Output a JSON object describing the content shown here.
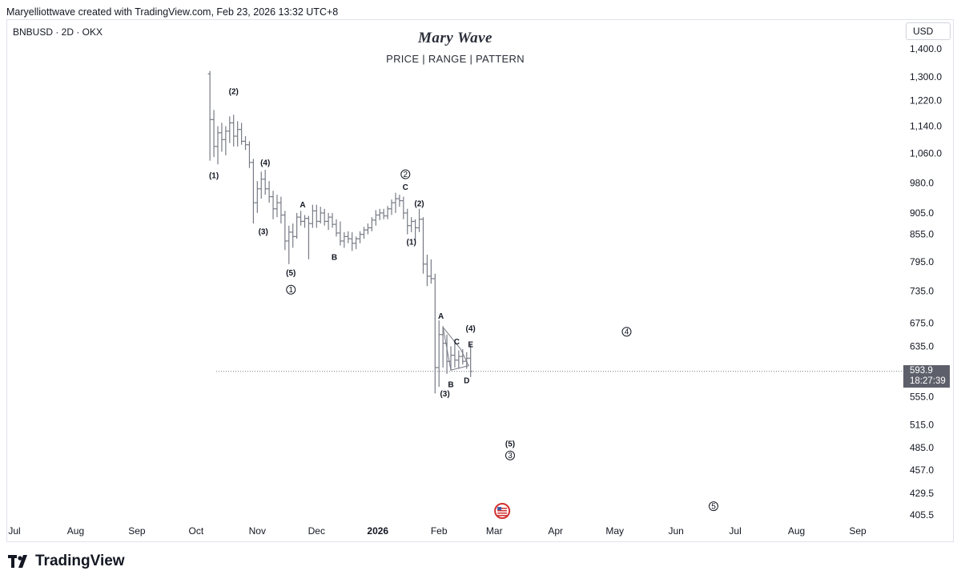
{
  "header": {
    "attribution": "Maryelliottwave created with TradingView.com, Feb 23, 2026 13:32 UTC+8"
  },
  "chart_info": {
    "symbol": "BNBUSD · 2D · OKX",
    "currency": "USD",
    "current_price": "593.9",
    "countdown": "18:27:39",
    "footer_brand": "TradingView"
  },
  "chart_data": {
    "type": "ohlc",
    "title": "Mary Wave",
    "subtitle": "PRICE  |  RANGE  |  PATTERN",
    "scale": "log",
    "y_range": [
      390,
      1480
    ],
    "x_range": [
      "2025-06-25",
      "2026-09-30"
    ],
    "y_ticks": [
      "1,400.0",
      "1,300.0",
      "1,220.0",
      "1,140.0",
      "1,060.0",
      "980.0",
      "905.0",
      "855.0",
      "795.0",
      "735.0",
      "675.0",
      "635.0",
      "555.0",
      "515.0",
      "485.0",
      "457.0",
      "429.5",
      "405.5"
    ],
    "x_ticks": [
      {
        "label": "Jul",
        "date": "2025-07-01",
        "bold": false
      },
      {
        "label": "Aug",
        "date": "2025-08-01",
        "bold": false
      },
      {
        "label": "Sep",
        "date": "2025-09-01",
        "bold": false
      },
      {
        "label": "Oct",
        "date": "2025-10-01",
        "bold": false
      },
      {
        "label": "Nov",
        "date": "2025-11-01",
        "bold": false
      },
      {
        "label": "Dec",
        "date": "2025-12-01",
        "bold": false
      },
      {
        "label": "2026",
        "date": "2026-01-01",
        "bold": true
      },
      {
        "label": "Feb",
        "date": "2026-02-01",
        "bold": false
      },
      {
        "label": "Mar",
        "date": "2026-03-01",
        "bold": false
      },
      {
        "label": "Apr",
        "date": "2026-04-01",
        "bold": false
      },
      {
        "label": "May",
        "date": "2026-05-01",
        "bold": false
      },
      {
        "label": "Jun",
        "date": "2026-06-01",
        "bold": false
      },
      {
        "label": "Jul",
        "date": "2026-07-01",
        "bold": false
      },
      {
        "label": "Aug",
        "date": "2026-08-01",
        "bold": false
      },
      {
        "label": "Sep",
        "date": "2026-09-01",
        "bold": false
      }
    ],
    "last_price": 593.9,
    "bars": [
      {
        "date": "2025-10-08",
        "o": 1310,
        "h": 1320,
        "l": 1040,
        "c": 1160
      },
      {
        "date": "2025-10-10",
        "o": 1160,
        "h": 1190,
        "l": 1050,
        "c": 1080
      },
      {
        "date": "2025-10-12",
        "o": 1080,
        "h": 1140,
        "l": 1030,
        "c": 1120
      },
      {
        "date": "2025-10-14",
        "o": 1120,
        "h": 1150,
        "l": 1065,
        "c": 1100
      },
      {
        "date": "2025-10-16",
        "o": 1100,
        "h": 1140,
        "l": 1055,
        "c": 1125
      },
      {
        "date": "2025-10-18",
        "o": 1125,
        "h": 1170,
        "l": 1090,
        "c": 1150
      },
      {
        "date": "2025-10-20",
        "o": 1150,
        "h": 1175,
        "l": 1080,
        "c": 1110
      },
      {
        "date": "2025-10-22",
        "o": 1110,
        "h": 1155,
        "l": 1080,
        "c": 1130
      },
      {
        "date": "2025-10-24",
        "o": 1130,
        "h": 1150,
        "l": 1085,
        "c": 1095
      },
      {
        "date": "2025-10-26",
        "o": 1095,
        "h": 1110,
        "l": 1070,
        "c": 1085
      },
      {
        "date": "2025-10-28",
        "o": 1085,
        "h": 1095,
        "l": 1020,
        "c": 1035
      },
      {
        "date": "2025-10-30",
        "o": 1035,
        "h": 1045,
        "l": 880,
        "c": 930
      },
      {
        "date": "2025-11-01",
        "o": 930,
        "h": 985,
        "l": 905,
        "c": 965
      },
      {
        "date": "2025-11-03",
        "o": 965,
        "h": 1010,
        "l": 940,
        "c": 990
      },
      {
        "date": "2025-11-05",
        "o": 990,
        "h": 1015,
        "l": 950,
        "c": 965
      },
      {
        "date": "2025-11-07",
        "o": 965,
        "h": 985,
        "l": 930,
        "c": 945
      },
      {
        "date": "2025-11-09",
        "o": 945,
        "h": 960,
        "l": 890,
        "c": 915
      },
      {
        "date": "2025-11-11",
        "o": 915,
        "h": 950,
        "l": 895,
        "c": 930
      },
      {
        "date": "2025-11-13",
        "o": 930,
        "h": 945,
        "l": 880,
        "c": 900
      },
      {
        "date": "2025-11-15",
        "o": 900,
        "h": 910,
        "l": 820,
        "c": 840
      },
      {
        "date": "2025-11-17",
        "o": 840,
        "h": 875,
        "l": 790,
        "c": 860
      },
      {
        "date": "2025-11-19",
        "o": 860,
        "h": 880,
        "l": 825,
        "c": 850
      },
      {
        "date": "2025-11-21",
        "o": 850,
        "h": 905,
        "l": 845,
        "c": 895
      },
      {
        "date": "2025-11-23",
        "o": 895,
        "h": 910,
        "l": 875,
        "c": 885
      },
      {
        "date": "2025-11-25",
        "o": 885,
        "h": 900,
        "l": 870,
        "c": 892
      },
      {
        "date": "2025-11-27",
        "o": 892,
        "h": 898,
        "l": 800,
        "c": 880
      },
      {
        "date": "2025-11-29",
        "o": 880,
        "h": 925,
        "l": 870,
        "c": 910
      },
      {
        "date": "2025-12-01",
        "o": 910,
        "h": 925,
        "l": 870,
        "c": 885
      },
      {
        "date": "2025-12-03",
        "o": 885,
        "h": 920,
        "l": 880,
        "c": 905
      },
      {
        "date": "2025-12-05",
        "o": 905,
        "h": 915,
        "l": 875,
        "c": 885
      },
      {
        "date": "2025-12-07",
        "o": 885,
        "h": 905,
        "l": 865,
        "c": 895
      },
      {
        "date": "2025-12-09",
        "o": 895,
        "h": 905,
        "l": 870,
        "c": 878
      },
      {
        "date": "2025-12-11",
        "o": 878,
        "h": 890,
        "l": 850,
        "c": 858
      },
      {
        "date": "2025-12-13",
        "o": 858,
        "h": 885,
        "l": 830,
        "c": 840
      },
      {
        "date": "2025-12-15",
        "o": 840,
        "h": 860,
        "l": 825,
        "c": 850
      },
      {
        "date": "2025-12-17",
        "o": 850,
        "h": 862,
        "l": 835,
        "c": 845
      },
      {
        "date": "2025-12-19",
        "o": 845,
        "h": 860,
        "l": 818,
        "c": 835
      },
      {
        "date": "2025-12-21",
        "o": 835,
        "h": 850,
        "l": 822,
        "c": 845
      },
      {
        "date": "2025-12-23",
        "o": 845,
        "h": 862,
        "l": 835,
        "c": 855
      },
      {
        "date": "2025-12-25",
        "o": 855,
        "h": 872,
        "l": 845,
        "c": 865
      },
      {
        "date": "2025-12-27",
        "o": 865,
        "h": 880,
        "l": 855,
        "c": 870
      },
      {
        "date": "2025-12-29",
        "o": 870,
        "h": 895,
        "l": 862,
        "c": 888
      },
      {
        "date": "2025-12-31",
        "o": 888,
        "h": 912,
        "l": 875,
        "c": 900
      },
      {
        "date": "2026-01-02",
        "o": 900,
        "h": 915,
        "l": 888,
        "c": 905
      },
      {
        "date": "2026-01-04",
        "o": 905,
        "h": 915,
        "l": 890,
        "c": 898
      },
      {
        "date": "2026-01-06",
        "o": 898,
        "h": 922,
        "l": 890,
        "c": 915
      },
      {
        "date": "2026-01-08",
        "o": 915,
        "h": 938,
        "l": 900,
        "c": 930
      },
      {
        "date": "2026-01-10",
        "o": 930,
        "h": 955,
        "l": 905,
        "c": 940
      },
      {
        "date": "2026-01-12",
        "o": 940,
        "h": 950,
        "l": 920,
        "c": 935
      },
      {
        "date": "2026-01-14",
        "o": 935,
        "h": 945,
        "l": 890,
        "c": 905
      },
      {
        "date": "2026-01-16",
        "o": 905,
        "h": 915,
        "l": 855,
        "c": 875
      },
      {
        "date": "2026-01-18",
        "o": 875,
        "h": 895,
        "l": 860,
        "c": 885
      },
      {
        "date": "2026-01-20",
        "o": 885,
        "h": 890,
        "l": 840,
        "c": 870
      },
      {
        "date": "2026-01-22",
        "o": 870,
        "h": 915,
        "l": 860,
        "c": 890
      },
      {
        "date": "2026-01-24",
        "o": 890,
        "h": 895,
        "l": 770,
        "c": 790
      },
      {
        "date": "2026-01-26",
        "o": 790,
        "h": 810,
        "l": 745,
        "c": 765
      },
      {
        "date": "2026-01-28",
        "o": 765,
        "h": 800,
        "l": 750,
        "c": 760
      },
      {
        "date": "2026-01-30",
        "o": 760,
        "h": 770,
        "l": 560,
        "c": 600
      },
      {
        "date": "2026-02-01",
        "o": 600,
        "h": 680,
        "l": 570,
        "c": 655
      },
      {
        "date": "2026-02-03",
        "o": 655,
        "h": 670,
        "l": 600,
        "c": 640
      },
      {
        "date": "2026-02-05",
        "o": 640,
        "h": 655,
        "l": 590,
        "c": 610
      },
      {
        "date": "2026-02-07",
        "o": 610,
        "h": 635,
        "l": 595,
        "c": 620
      },
      {
        "date": "2026-02-09",
        "o": 620,
        "h": 640,
        "l": 600,
        "c": 612
      },
      {
        "date": "2026-02-11",
        "o": 612,
        "h": 628,
        "l": 598,
        "c": 618
      },
      {
        "date": "2026-02-13",
        "o": 618,
        "h": 630,
        "l": 605,
        "c": 610
      },
      {
        "date": "2026-02-15",
        "o": 610,
        "h": 625,
        "l": 598,
        "c": 615
      },
      {
        "date": "2026-02-17",
        "o": 615,
        "h": 638,
        "l": 585,
        "c": 593.9
      }
    ],
    "annotations": [
      {
        "text": "(2)",
        "date": "2025-10-20",
        "price": 1250,
        "kind": "paren"
      },
      {
        "text": "(1)",
        "date": "2025-10-10",
        "price": 1000,
        "kind": "paren"
      },
      {
        "text": "(4)",
        "date": "2025-11-05",
        "price": 1035,
        "kind": "paren"
      },
      {
        "text": "(3)",
        "date": "2025-11-04",
        "price": 862,
        "kind": "paren"
      },
      {
        "text": "A",
        "date": "2025-11-24",
        "price": 925,
        "kind": "letter"
      },
      {
        "text": "(5)",
        "date": "2025-11-18",
        "price": 772,
        "kind": "paren"
      },
      {
        "text": "1",
        "date": "2025-11-18",
        "price": 738,
        "kind": "circle"
      },
      {
        "text": "B",
        "date": "2025-12-10",
        "price": 805,
        "kind": "letter"
      },
      {
        "text": "2",
        "date": "2026-01-15",
        "price": 1003,
        "kind": "circle"
      },
      {
        "text": "C",
        "date": "2026-01-15",
        "price": 970,
        "kind": "letter"
      },
      {
        "text": "(2)",
        "date": "2026-01-22",
        "price": 928,
        "kind": "paren"
      },
      {
        "text": "(1)",
        "date": "2026-01-18",
        "price": 838,
        "kind": "paren"
      },
      {
        "text": "A",
        "date": "2026-02-02",
        "price": 688,
        "kind": "letter"
      },
      {
        "text": "(4)",
        "date": "2026-02-17",
        "price": 666,
        "kind": "paren"
      },
      {
        "text": "C",
        "date": "2026-02-10",
        "price": 643,
        "kind": "letter"
      },
      {
        "text": "E",
        "date": "2026-02-17",
        "price": 638,
        "kind": "letter"
      },
      {
        "text": "D",
        "date": "2026-02-15",
        "price": 580,
        "kind": "letter"
      },
      {
        "text": "B",
        "date": "2026-02-07",
        "price": 574,
        "kind": "letter"
      },
      {
        "text": "(3)",
        "date": "2026-02-04",
        "price": 560,
        "kind": "paren"
      },
      {
        "text": "4",
        "date": "2026-05-07",
        "price": 660,
        "kind": "circle"
      },
      {
        "text": "(5)",
        "date": "2026-03-09",
        "price": 490,
        "kind": "paren"
      },
      {
        "text": "3",
        "date": "2026-03-09",
        "price": 475,
        "kind": "circle"
      },
      {
        "text": "5",
        "date": "2026-06-20",
        "price": 415,
        "kind": "circle"
      }
    ],
    "triangle": [
      {
        "date": "2026-02-03",
        "price": 668
      },
      {
        "date": "2026-02-12",
        "price": 630
      },
      {
        "date": "2026-02-16",
        "price": 603
      },
      {
        "date": "2026-02-07",
        "price": 596
      },
      {
        "date": "2026-02-03",
        "price": 668
      }
    ],
    "event_marker": {
      "date": "2026-03-05",
      "kind": "US flag"
    }
  },
  "colors": {
    "bar": "#787b86",
    "text": "#131722",
    "price_tag": "#5d606b",
    "frame": "#e0e3eb",
    "flag_red": "#d32f2f"
  }
}
